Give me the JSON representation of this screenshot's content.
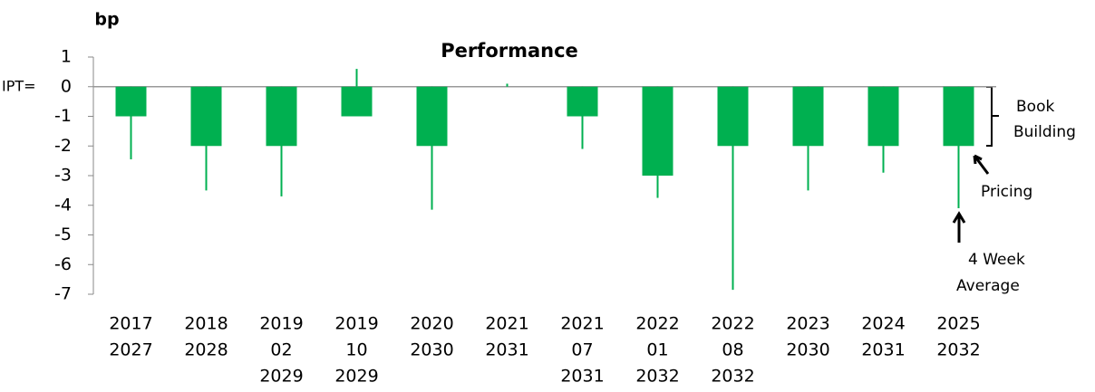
{
  "chart_data": {
    "type": "bar",
    "title": "Performance",
    "y_label": "bp",
    "zero_label": "IPT=",
    "categories": [
      [
        "2017",
        "2027"
      ],
      [
        "2018",
        "2028"
      ],
      [
        "2019",
        "02",
        "2029"
      ],
      [
        "2019",
        "10",
        "2029"
      ],
      [
        "2020",
        "2030"
      ],
      [
        "2021",
        "2031"
      ],
      [
        "2021",
        "07",
        "2031"
      ],
      [
        "2022",
        "01",
        "2032"
      ],
      [
        "2022",
        "08",
        "2032"
      ],
      [
        "2023",
        "2030"
      ],
      [
        "2024",
        "2031"
      ],
      [
        "2025",
        "2032"
      ]
    ],
    "series": [
      {
        "name": "Pricing",
        "color": "#00b050",
        "values": [
          -1,
          -2,
          -2,
          -1,
          -2,
          0,
          -1,
          -3,
          -2,
          -2,
          -2,
          -2
        ]
      },
      {
        "name": "4 Week Average",
        "color": "#00b050",
        "values": [
          -2.45,
          -3.5,
          -3.7,
          0.6,
          -4.15,
          0.1,
          -2.1,
          -3.75,
          -6.85,
          -3.5,
          -2.9,
          -4.1
        ]
      }
    ],
    "bracket_label": [
      "Book",
      "Building"
    ],
    "ylim": [
      -7,
      1
    ],
    "yticks": [
      1,
      0,
      -1,
      -2,
      -3,
      -4,
      -5,
      -6,
      -7
    ]
  }
}
